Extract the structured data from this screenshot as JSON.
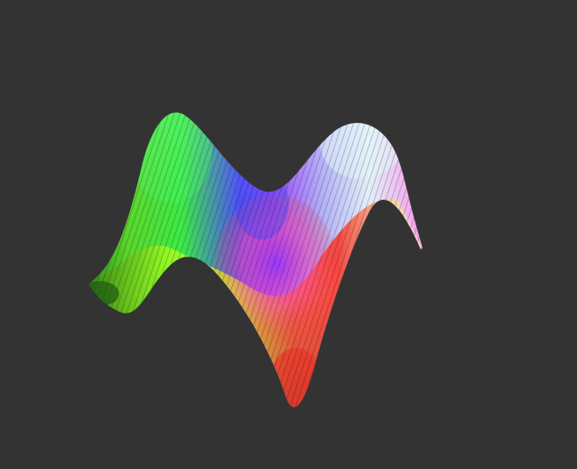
{
  "scene": {
    "background_color": "#333333",
    "subject": "surface-3d",
    "colors": {
      "green": "#7cff3a",
      "lime": "#c8ff2a",
      "blue": "#5a4dff",
      "violet": "#9a36ff",
      "red": "#ff3a2e",
      "orange": "#ff8a2a",
      "cream": "#fff4c0",
      "cyan": "#d4f8ff",
      "pink": "#ff9cf4",
      "dark_green": "#1f5a12"
    }
  }
}
